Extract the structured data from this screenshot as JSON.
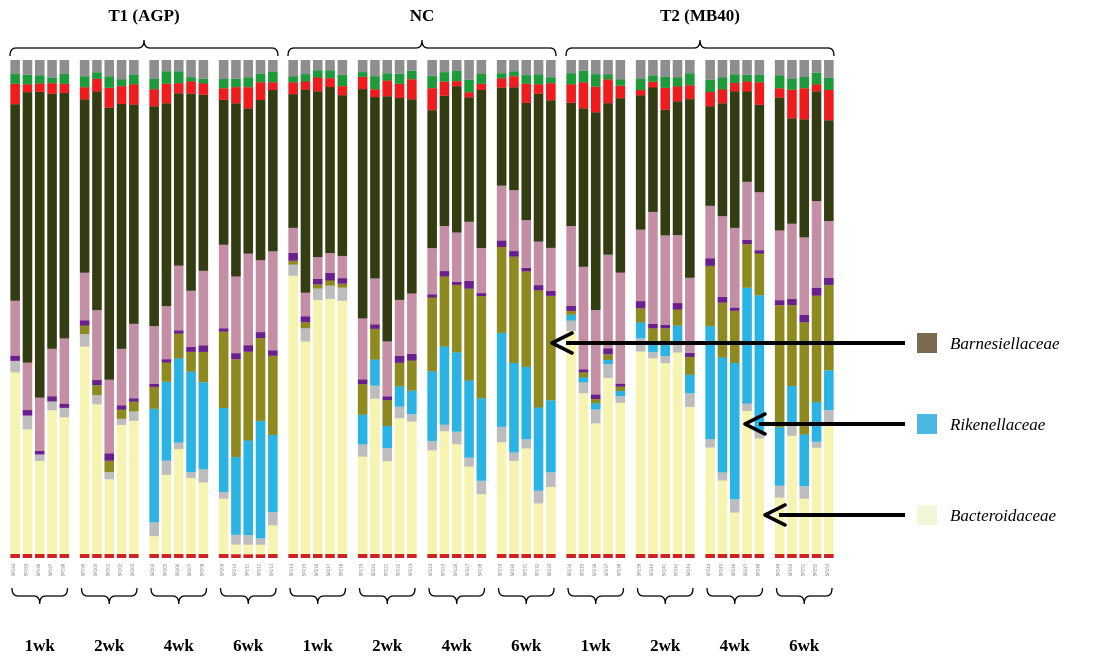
{
  "chart_data": {
    "type": "bar",
    "stacked": true,
    "normalized": true,
    "groups": [
      {
        "name": "T1 (AGP)",
        "weeks": [
          "1wk",
          "2wk",
          "4wk",
          "6wk"
        ]
      },
      {
        "name": "NC",
        "weeks": [
          "1wk",
          "2wk",
          "4wk",
          "6wk"
        ]
      },
      {
        "name": "T2 (MB40)",
        "weeks": [
          "1wk",
          "2wk",
          "4wk",
          "6wk"
        ]
      }
    ],
    "samples_per_week": 5,
    "legend": [
      {
        "name": "Barnesiellaceae",
        "color": "#7a6a4f"
      },
      {
        "name": "Rikenellaceae",
        "color": "#4ab8e0"
      },
      {
        "name": "Bacteroidaceae",
        "color": "#f3f5d8"
      }
    ],
    "series_colors": {
      "bottom_minor": "#cc2222",
      "Bacteroidaceae": "#f7f3b0",
      "light_grey": "#bdbdbd",
      "Rikenellaceae": "#2bb3e3",
      "Barnesiellaceae": "#8e8a1f",
      "purple_minor": "#6b1f8f",
      "pink": "#c48ea5",
      "dark_green": "#343d12",
      "red": "#ee1c1c",
      "green": "#1d9a3a",
      "top_grey": "#8e8e8e"
    },
    "week_profiles": {
      "T1 (AGP)": {
        "1wk": {
          "Bacteroidaceae": 0.35,
          "Rikenellaceae": 0.0,
          "Barnesiellaceae": 0.0,
          "pink": 0.11,
          "dark_green": 0.5
        },
        "2wk": {
          "Bacteroidaceae": 0.3,
          "Rikenellaceae": 0.0,
          "Barnesiellaceae": 0.02,
          "pink": 0.12,
          "dark_green": 0.45
        },
        "4wk": {
          "Bacteroidaceae": 0.12,
          "Rikenellaceae": 0.19,
          "Barnesiellaceae": 0.05,
          "pink": 0.14,
          "dark_green": 0.4
        },
        "6wk": {
          "Bacteroidaceae": 0.1,
          "Rikenellaceae": 0.2,
          "Barnesiellaceae": 0.17,
          "pink": 0.16,
          "dark_green": 0.3
        }
      },
      "NC": {
        "1wk": {
          "Bacteroidaceae": 0.55,
          "Rikenellaceae": 0.0,
          "Barnesiellaceae": 0.01,
          "pink": 0.05,
          "dark_green": 0.35
        },
        "2wk": {
          "Bacteroidaceae": 0.3,
          "Rikenellaceae": 0.05,
          "Barnesiellaceae": 0.05,
          "pink": 0.1,
          "dark_green": 0.4
        },
        "4wk": {
          "Bacteroidaceae": 0.15,
          "Rikenellaceae": 0.16,
          "Barnesiellaceae": 0.17,
          "pink": 0.1,
          "dark_green": 0.3
        },
        "6wk": {
          "Bacteroidaceae": 0.07,
          "Rikenellaceae": 0.18,
          "Barnesiellaceae": 0.21,
          "pink": 0.1,
          "dark_green": 0.26
        }
      },
      "T2 (MB40)": {
        "1wk": {
          "Bacteroidaceae": 0.4,
          "Rikenellaceae": 0.01,
          "Barnesiellaceae": 0.01,
          "pink": 0.18,
          "dark_green": 0.33
        },
        "2wk": {
          "Bacteroidaceae": 0.28,
          "Rikenellaceae": 0.03,
          "Barnesiellaceae": 0.03,
          "pink": 0.18,
          "dark_green": 0.33
        },
        "4wk": {
          "Bacteroidaceae": 0.1,
          "Rikenellaceae": 0.25,
          "Barnesiellaceae": 0.1,
          "pink": 0.14,
          "dark_green": 0.22
        },
        "6wk": {
          "Bacteroidaceae": 0.08,
          "Rikenellaceae": 0.1,
          "Barnesiellaceae": 0.2,
          "pink": 0.14,
          "dark_green": 0.25
        }
      }
    },
    "ylim": [
      0,
      1
    ]
  }
}
